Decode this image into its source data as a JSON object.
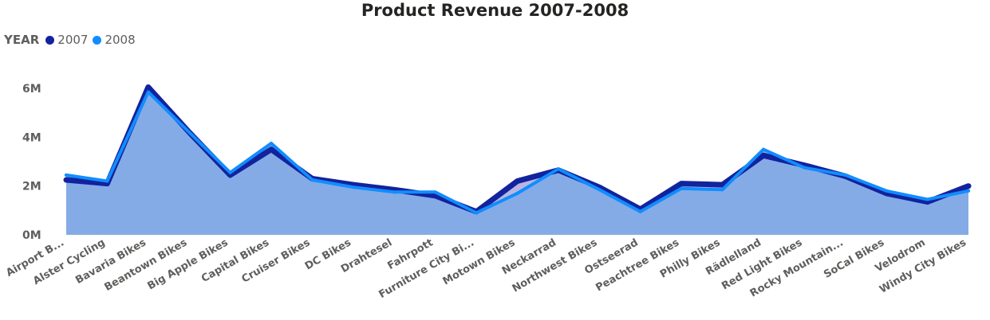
{
  "chart_data": {
    "type": "area",
    "title": "Product Revenue 2007-2008",
    "legend_title": "YEAR",
    "legend_position": "top-left",
    "grid": false,
    "ylim": [
      0,
      6500000
    ],
    "yticks": [
      {
        "value": 0,
        "label": "0M"
      },
      {
        "value": 2000000,
        "label": "2M"
      },
      {
        "value": 4000000,
        "label": "4M"
      },
      {
        "value": 6000000,
        "label": "6M"
      }
    ],
    "categories": [
      "Airport Bikes",
      "Alster Cycling",
      "Bavaria Bikes",
      "Beantown Bikes",
      "Big Apple Bikes",
      "Capital Bikes",
      "Cruiser Bikes",
      "DC Bikes",
      "Drahtesel",
      "Fahrpott",
      "Furniture City Bikes",
      "Motown Bikes",
      "Neckarrad",
      "Northwest Bikes",
      "Ostseerad",
      "Peachtree Bikes",
      "Philly Bikes",
      "Rädlelland",
      "Red Light Bikes",
      "Rocky Mountain Bikes",
      "SoCal Bikes",
      "Velodrom",
      "Windy City Bikes"
    ],
    "category_labels": [
      "Airport B...",
      "Alster Cycling",
      "Bavaria Bikes",
      "Beantown Bikes",
      "Big Apple Bikes",
      "Capital Bikes",
      "Cruiser Bikes",
      "DC Bikes",
      "Drahtesel",
      "Fahrpott",
      "Furniture City Bi...",
      "Motown Bikes",
      "Neckarrad",
      "Northwest Bikes",
      "Ostseerad",
      "Peachtree Bikes",
      "Philly Bikes",
      "Rädlelland",
      "Red Light Bikes",
      "Rocky Mountain...",
      "SoCal Bikes",
      "Velodrom",
      "Windy City Bikes"
    ],
    "series": [
      {
        "name": "2007",
        "color": "#12239e",
        "values": [
          2250000,
          2100000,
          6050000,
          4200000,
          2450000,
          3500000,
          2300000,
          2050000,
          1850000,
          1600000,
          950000,
          2200000,
          2650000,
          1950000,
          1050000,
          2100000,
          2050000,
          3250000,
          2850000,
          2400000,
          1700000,
          1350000,
          2000000
        ]
      },
      {
        "name": "2008",
        "color": "#118dff",
        "values": [
          2450000,
          2200000,
          5850000,
          4200000,
          2550000,
          3750000,
          2250000,
          1950000,
          1750000,
          1750000,
          900000,
          1700000,
          2700000,
          1850000,
          950000,
          1900000,
          1850000,
          3500000,
          2750000,
          2450000,
          1800000,
          1450000,
          1800000
        ]
      }
    ]
  }
}
